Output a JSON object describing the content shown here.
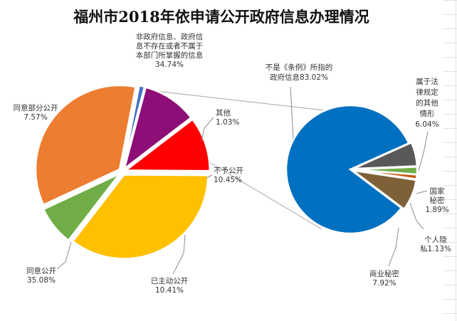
{
  "chart_data": {
    "type": "pie",
    "title": "福州市2018年依申请公开政府信息办理情况",
    "main_pie": {
      "slices": [
        {
          "id": "nongov",
          "label": [
            "非政府信息、政府信",
            "息不存在或者不属于",
            "本部门所掌握的信息"
          ],
          "value_text": "34.74%",
          "value": 34.74,
          "color": "#ED7D31"
        },
        {
          "id": "other",
          "label": [
            "其他"
          ],
          "value_text": "1.03%",
          "value": 1.03,
          "color": "#4472C4"
        },
        {
          "id": "deny",
          "label": [
            "不予公开"
          ],
          "value_text": "10.45%",
          "value": 10.45,
          "color": "#8E0E77"
        },
        {
          "id": "proactive",
          "label": [
            "已主动公开"
          ],
          "value_text": "10.41%",
          "value": 10.41,
          "color": "#FF0000"
        },
        {
          "id": "agree",
          "label": [
            "同意公开"
          ],
          "value_text": "35.08%",
          "value": 35.08,
          "color": "#FFC000"
        },
        {
          "id": "partial",
          "label": [
            "同意部分公开"
          ],
          "value_text": "7.57%",
          "value": 7.57,
          "color": "#70AD47"
        }
      ]
    },
    "sub_pie": {
      "slices": [
        {
          "id": "notreg",
          "label": [
            "不是《条例》所指的",
            "政府信息83.02%"
          ],
          "value_text": "",
          "value": 83.02,
          "color": "#0070C0"
        },
        {
          "id": "legal",
          "label": [
            "属于法",
            "律规定",
            "的其他",
            "情形"
          ],
          "value_text": "6.04%",
          "value": 6.04,
          "color": "#595959"
        },
        {
          "id": "state",
          "label": [
            "国家",
            "秘密"
          ],
          "value_text": "1.89%",
          "value": 1.89,
          "color": "#70AD47"
        },
        {
          "id": "privacy",
          "label": [
            "个人隐",
            "私1.13%"
          ],
          "value_text": "",
          "value": 1.13,
          "color": "#C55A11"
        },
        {
          "id": "commercial",
          "label": [
            "商业秘密"
          ],
          "value_text": "7.92%",
          "value": 7.92,
          "color": "#7F6137"
        }
      ]
    }
  }
}
